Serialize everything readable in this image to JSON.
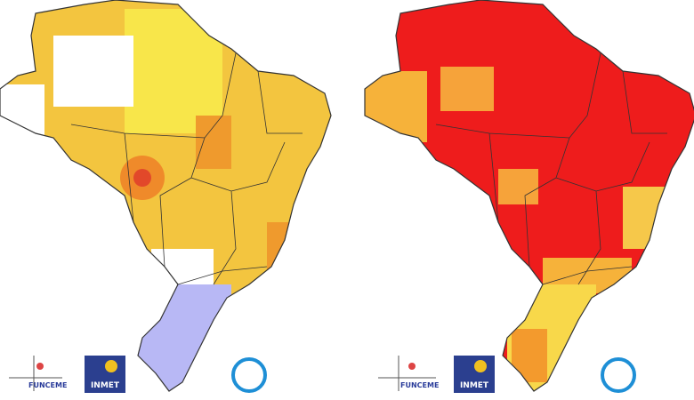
{
  "maps": [
    {
      "logos": {
        "funceme": "FUNCEME",
        "inmet": "INMET"
      }
    },
    {
      "logos": {
        "funceme": "FUNCEME",
        "inmet": "INMET"
      }
    }
  ]
}
